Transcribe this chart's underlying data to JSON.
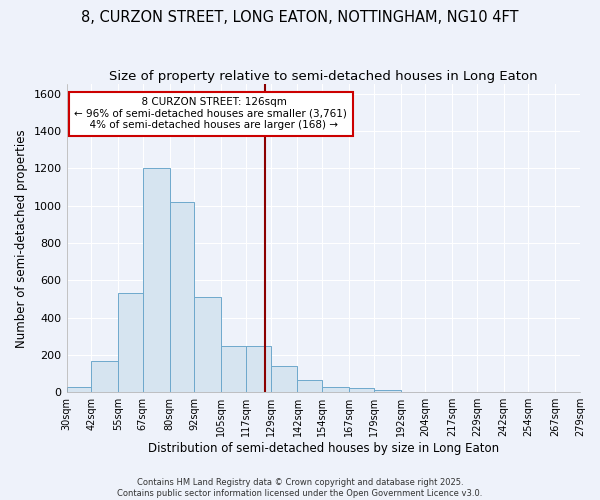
{
  "title": "8, CURZON STREET, LONG EATON, NOTTINGHAM, NG10 4FT",
  "subtitle": "Size of property relative to semi-detached houses in Long Eaton",
  "xlabel": "Distribution of semi-detached houses by size in Long Eaton",
  "ylabel": "Number of semi-detached properties",
  "bar_color": "#d6e4f0",
  "bar_edge_color": "#6ea8cc",
  "background_color": "#eef2fa",
  "fig_background_color": "#eef2fa",
  "grid_color": "#ffffff",
  "vline_color": "#8b0000",
  "bin_edges": [
    30,
    42,
    55,
    67,
    80,
    92,
    105,
    117,
    129,
    142,
    154,
    167,
    179,
    192,
    204,
    217,
    229,
    242,
    254,
    267,
    279
  ],
  "bin_labels": [
    "30sqm",
    "42sqm",
    "55sqm",
    "67sqm",
    "80sqm",
    "92sqm",
    "105sqm",
    "117sqm",
    "129sqm",
    "142sqm",
    "154sqm",
    "167sqm",
    "179sqm",
    "192sqm",
    "204sqm",
    "217sqm",
    "229sqm",
    "242sqm",
    "254sqm",
    "267sqm",
    "279sqm"
  ],
  "counts": [
    30,
    165,
    530,
    1200,
    1020,
    510,
    245,
    245,
    140,
    65,
    30,
    20,
    12,
    0,
    0,
    0,
    0,
    0,
    0,
    0
  ],
  "ylim": [
    0,
    1650
  ],
  "yticks": [
    0,
    200,
    400,
    600,
    800,
    1000,
    1200,
    1400,
    1600
  ],
  "property_size": 126,
  "property_label": "8 CURZON STREET: 126sqm",
  "pct_smaller": 96,
  "n_smaller": 3761,
  "pct_larger": 4,
  "n_larger": 168,
  "vline_x": 126,
  "annotation_box_color": "#ffffff",
  "annotation_box_edge": "#cc0000",
  "footer_text": "Contains HM Land Registry data © Crown copyright and database right 2025.\nContains public sector information licensed under the Open Government Licence v3.0.",
  "title_fontsize": 10.5,
  "subtitle_fontsize": 9.5,
  "axis_label_fontsize": 8.5,
  "tick_fontsize": 7,
  "annotation_fontsize": 7.5,
  "footer_fontsize": 6
}
